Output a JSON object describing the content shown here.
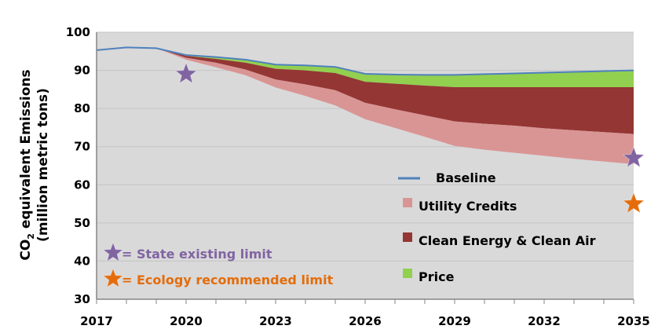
{
  "chart_data": {
    "type": "area",
    "ylabel": {
      "main_prefix": "CO",
      "subscript": "2",
      "main_suffix": " equivalent Emissions",
      "line2": "(million metric tons)"
    },
    "ylim": [
      30,
      100
    ],
    "yticks": [
      "30",
      "40",
      "50",
      "60",
      "70",
      "80",
      "90",
      "100"
    ],
    "xlim": [
      2017,
      2035
    ],
    "xticks": [
      "2017",
      "2020",
      "2023",
      "2026",
      "2029",
      "2032",
      "2035"
    ],
    "grid": true,
    "x": [
      2017,
      2018,
      2019,
      2020,
      2021,
      2022,
      2023,
      2024,
      2025,
      2026,
      2027,
      2028,
      2029,
      2030,
      2031,
      2032,
      2033,
      2034,
      2035
    ],
    "baseline": {
      "name": "Baseline",
      "color": "#4f81bd",
      "values": [
        95.3,
        96.0,
        95.8,
        94.0,
        93.5,
        92.8,
        91.5,
        91.3,
        90.9,
        89.1,
        88.9,
        88.8,
        88.8,
        89.0,
        89.2,
        89.4,
        89.6,
        89.8,
        90.0
      ]
    },
    "series": [
      {
        "name": "Price",
        "color": "#92d050",
        "values_lower_edge": [
          95.3,
          96.0,
          95.8,
          93.8,
          93.0,
          92.0,
          90.4,
          90.0,
          89.3,
          87.0,
          86.5,
          86.0,
          85.6,
          85.6,
          85.6,
          85.6,
          85.6,
          85.6,
          85.6
        ]
      },
      {
        "name": "Clean Energy & Clean Air",
        "color": "#943634",
        "values_lower_edge": [
          95.3,
          96.0,
          95.8,
          93.3,
          92.0,
          90.2,
          87.6,
          86.3,
          84.8,
          81.5,
          79.8,
          78.2,
          76.6,
          76.0,
          75.5,
          74.8,
          74.3,
          73.8,
          73.3
        ]
      },
      {
        "name": "Utility Credits",
        "color": "#d99594",
        "values_lower_edge": [
          95.3,
          96.0,
          95.8,
          92.8,
          90.8,
          88.7,
          85.5,
          83.3,
          80.8,
          77.2,
          74.9,
          72.6,
          70.2,
          69.2,
          68.4,
          67.6,
          66.8,
          66.1,
          65.4
        ]
      }
    ],
    "markers": [
      {
        "name": "State existing limit",
        "label": "= State existing limit",
        "color": "#8064a2",
        "points": [
          [
            2020,
            89
          ],
          [
            2035,
            67
          ]
        ]
      },
      {
        "name": "Ecology recommended limit",
        "label": "= Ecology recommended limit",
        "color": "#e46c0a",
        "points": [
          [
            2035,
            55
          ]
        ]
      }
    ],
    "legend_position": "bottom-right",
    "colors": {
      "plot_bg": "#d9d9d9",
      "grid": "#c4c4c4"
    }
  }
}
